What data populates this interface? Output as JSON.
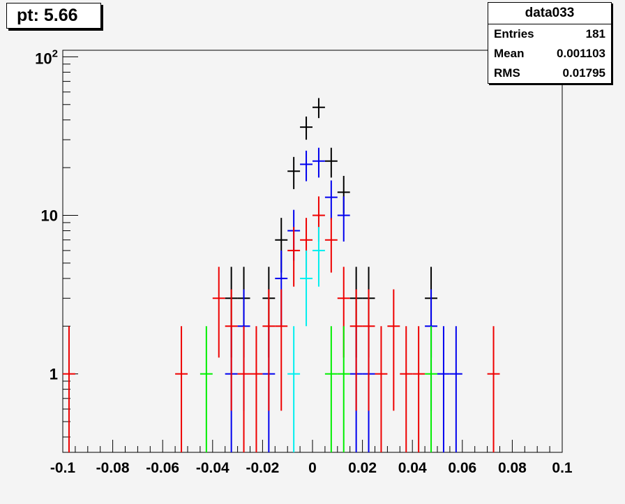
{
  "title": "pt: 5.66",
  "stats": {
    "name": "data033",
    "rows": [
      {
        "label": "Entries",
        "value": "181"
      },
      {
        "label": "Mean",
        "value": "0.001103"
      },
      {
        "label": "RMS",
        "value": "0.01795"
      }
    ]
  },
  "chart_data": {
    "type": "scatter",
    "title": "pt: 5.66",
    "xlim": [
      -0.1,
      0.1
    ],
    "ylim": [
      0.32,
      110
    ],
    "log_y": true,
    "bin_width": 0.005,
    "x_ticks": [
      "-0.1",
      "-0.08",
      "-0.06",
      "-0.04",
      "-0.02",
      "0",
      "0.02",
      "0.04",
      "0.06",
      "0.08",
      "0.1"
    ],
    "x_tick_values": [
      -0.1,
      -0.08,
      -0.06,
      -0.04,
      -0.02,
      0,
      0.02,
      0.04,
      0.06,
      0.08,
      0.1
    ],
    "y_ticks": [
      "1",
      "10",
      "10^2"
    ],
    "y_tick_values": [
      1,
      10,
      100
    ],
    "series": [
      {
        "color": "#000000",
        "points": [
          {
            "x": -0.0325,
            "y": 3
          },
          {
            "x": -0.0275,
            "y": 3
          },
          {
            "x": -0.0175,
            "y": 3
          },
          {
            "x": -0.0125,
            "y": 7
          },
          {
            "x": -0.0075,
            "y": 19
          },
          {
            "x": -0.0025,
            "y": 36
          },
          {
            "x": 0.0025,
            "y": 48
          },
          {
            "x": 0.0075,
            "y": 22
          },
          {
            "x": 0.0125,
            "y": 14
          },
          {
            "x": 0.0175,
            "y": 3
          },
          {
            "x": 0.0225,
            "y": 3
          },
          {
            "x": 0.0475,
            "y": 3
          }
        ]
      },
      {
        "color": "#0000ee",
        "points": [
          {
            "x": -0.0325,
            "y": 1
          },
          {
            "x": -0.0275,
            "y": 2
          },
          {
            "x": -0.0175,
            "y": 1
          },
          {
            "x": -0.0125,
            "y": 4
          },
          {
            "x": -0.0075,
            "y": 8
          },
          {
            "x": -0.0025,
            "y": 21
          },
          {
            "x": 0.0025,
            "y": 22
          },
          {
            "x": 0.0075,
            "y": 13
          },
          {
            "x": 0.0125,
            "y": 10
          },
          {
            "x": 0.0175,
            "y": 1
          },
          {
            "x": 0.0225,
            "y": 1
          },
          {
            "x": 0.0475,
            "y": 2
          },
          {
            "x": 0.0525,
            "y": 1
          },
          {
            "x": 0.0575,
            "y": 1
          }
        ]
      },
      {
        "color": "#ee0000",
        "points": [
          {
            "x": -0.0975,
            "y": 1
          },
          {
            "x": -0.0525,
            "y": 1
          },
          {
            "x": -0.0375,
            "y": 3
          },
          {
            "x": -0.0325,
            "y": 2
          },
          {
            "x": -0.0275,
            "y": 1
          },
          {
            "x": -0.0225,
            "y": 1
          },
          {
            "x": -0.0175,
            "y": 2
          },
          {
            "x": -0.0125,
            "y": 2
          },
          {
            "x": -0.0075,
            "y": 6
          },
          {
            "x": -0.0025,
            "y": 7
          },
          {
            "x": 0.0025,
            "y": 10
          },
          {
            "x": 0.0075,
            "y": 7
          },
          {
            "x": 0.0125,
            "y": 3
          },
          {
            "x": 0.0175,
            "y": 2
          },
          {
            "x": 0.0225,
            "y": 2
          },
          {
            "x": 0.0275,
            "y": 1
          },
          {
            "x": 0.0325,
            "y": 2
          },
          {
            "x": 0.0375,
            "y": 1
          },
          {
            "x": 0.0425,
            "y": 1
          },
          {
            "x": 0.0725,
            "y": 1
          }
        ]
      },
      {
        "color": "#00ee00",
        "points": [
          {
            "x": -0.0425,
            "y": 1
          },
          {
            "x": 0.0075,
            "y": 1
          },
          {
            "x": 0.0125,
            "y": 1
          },
          {
            "x": 0.0475,
            "y": 1
          }
        ]
      },
      {
        "color": "#00eeee",
        "points": [
          {
            "x": -0.0075,
            "y": 1
          },
          {
            "x": -0.0025,
            "y": 4
          },
          {
            "x": 0.0025,
            "y": 6
          }
        ]
      }
    ]
  }
}
